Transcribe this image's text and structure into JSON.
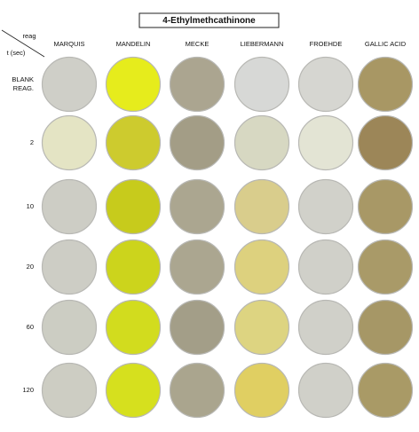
{
  "title": "4-Ethylmethcathinone",
  "corner": {
    "column_label": "reag",
    "row_label": "t (sec)"
  },
  "columns": [
    "MARQUIS",
    "MANDELIN",
    "MECKE",
    "LIEBERMANN",
    "FROEHDE",
    "GALLIC ACID"
  ],
  "rows": [
    [
      "BLANK",
      "REAG."
    ],
    [
      "2"
    ],
    [
      "10"
    ],
    [
      "20"
    ],
    [
      "60"
    ],
    [
      "120"
    ]
  ]
}
